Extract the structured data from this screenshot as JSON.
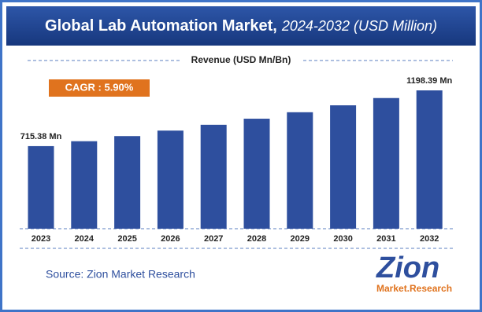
{
  "chart_data": {
    "type": "bar",
    "title": "Global Lab Automation Market,",
    "subtitle": "2024-2032 (USD Million)",
    "axis_label": "Revenue (USD Mn/Bn)",
    "annotation": "CAGR : 5.90%",
    "categories": [
      "2023",
      "2024",
      "2025",
      "2026",
      "2027",
      "2028",
      "2029",
      "2030",
      "2031",
      "2032"
    ],
    "values": [
      715.38,
      758,
      802,
      850,
      900,
      953,
      1009,
      1069,
      1132,
      1198.39
    ],
    "value_labels": [
      "715.38 Mn",
      null,
      null,
      null,
      null,
      null,
      null,
      null,
      null,
      "1198.39 Mn"
    ],
    "color": "#2e4f9e",
    "source": "Source: Zion Market Research",
    "logo": {
      "name": "Zion",
      "tagline": "Market.Research"
    }
  }
}
